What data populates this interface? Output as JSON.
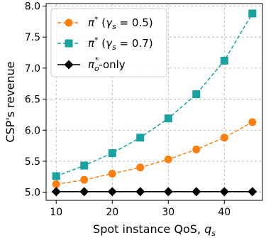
{
  "chart_data": {
    "type": "line",
    "xlabel": "Spot instance QoS, q_s",
    "xlabel_main": "Spot instance QoS, ",
    "xlabel_symbol": "q",
    "xlabel_subscript": "s",
    "ylabel": "CSP's revenue",
    "xlim": [
      8.2,
      46.8
    ],
    "ylim": [
      4.87,
      8.04
    ],
    "xticks": [
      10,
      20,
      30,
      40
    ],
    "yticks": [
      5.0,
      5.5,
      6.0,
      6.5,
      7.0,
      7.5,
      8.0
    ],
    "xtick_labels": [
      "10",
      "20",
      "30",
      "40"
    ],
    "ytick_labels": [
      "5.0",
      "5.5",
      "6.0",
      "6.5",
      "7.0",
      "7.5",
      "8.0"
    ],
    "grid": true,
    "legend_position": "top-left",
    "x": [
      10,
      15,
      20,
      25,
      30,
      35,
      40,
      45
    ],
    "series": [
      {
        "name": "π* (γs = 0.5)",
        "legend_main": "π",
        "legend_sup": "*",
        "legend_paren_open": "  (",
        "legend_gamma": "γ",
        "legend_gamma_sub": "s",
        "legend_eq": " = 0.5)",
        "values": [
          5.13,
          5.2,
          5.3,
          5.4,
          5.53,
          5.69,
          5.88,
          6.13
        ],
        "color": "#ff7f0e",
        "marker": "circle",
        "linestyle": "dashed"
      },
      {
        "name": "π* (γs = 0.7)",
        "legend_main": "π",
        "legend_sup": "*",
        "legend_paren_open": "  (",
        "legend_gamma": "γ",
        "legend_gamma_sub": "s",
        "legend_eq": " = 0.7)",
        "values": [
          5.26,
          5.43,
          5.63,
          5.88,
          6.19,
          6.58,
          7.12,
          7.88
        ],
        "color": "#17a2a0",
        "marker": "square",
        "linestyle": "dashed"
      },
      {
        "name": "πo*-only",
        "legend_main": "π",
        "legend_sub": "o",
        "legend_sup": "*",
        "legend_suffix": "-only",
        "values": [
          5.01,
          5.01,
          5.01,
          5.01,
          5.01,
          5.01,
          5.01,
          5.01
        ],
        "color": "#000000",
        "marker": "diamond",
        "linestyle": "solid"
      }
    ]
  }
}
